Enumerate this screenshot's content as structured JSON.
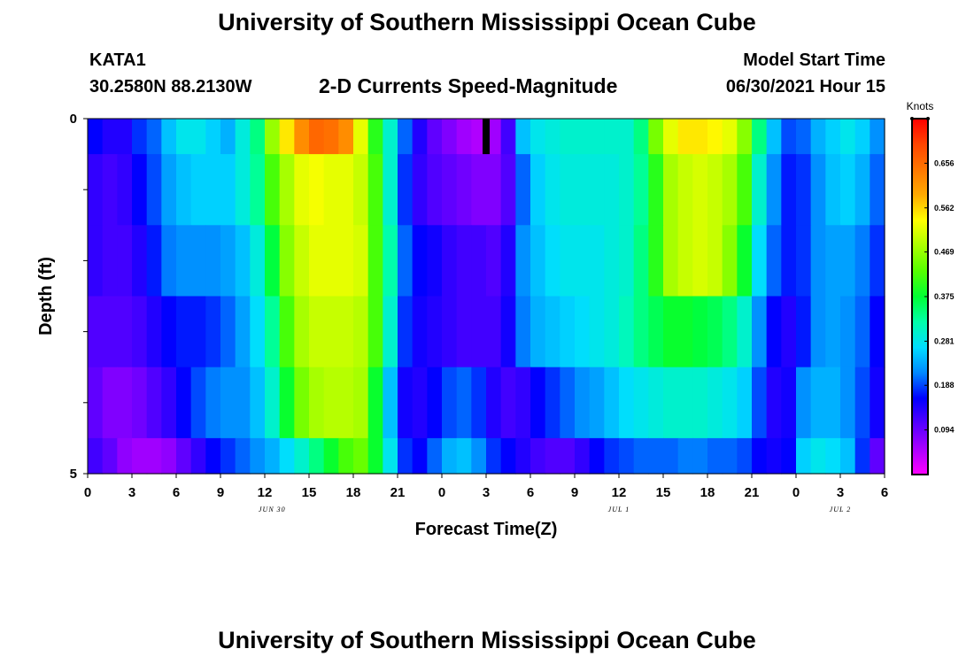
{
  "header": {
    "title": "University of Southern Mississippi Ocean Cube",
    "station": "KATA1",
    "coordinates": "30.2580N  88.2130W",
    "subtitle": "2-D Currents Speed-Magnitude",
    "model_start_label": "Model Start Time",
    "model_start_value": "06/30/2021 Hour 15"
  },
  "footer": {
    "title": "University of Southern Mississippi Ocean Cube"
  },
  "chart_data": {
    "type": "heatmap",
    "xlabel": "Forecast Time(Z)",
    "ylabel": "Depth (ft)",
    "x_hours": [
      0,
      3,
      6,
      9,
      12,
      15,
      18,
      21,
      24,
      27,
      30,
      33,
      36,
      39,
      42,
      45,
      48,
      51,
      54
    ],
    "x_tick_labels": [
      "0",
      "3",
      "6",
      "9",
      "12",
      "15",
      "18",
      "21",
      "0",
      "3",
      "6",
      "9",
      "12",
      "15",
      "18",
      "21",
      "0",
      "3",
      "6"
    ],
    "date_labels": [
      {
        "text": "JUN 30",
        "hour": 12.5
      },
      {
        "text": "JUL 1",
        "hour": 36
      },
      {
        "text": "JUL 2",
        "hour": 51
      }
    ],
    "xlim": [
      0,
      54
    ],
    "y_tick_labels": [
      {
        "depth": 0,
        "label": "0"
      },
      {
        "depth": 5,
        "label": "5"
      }
    ],
    "ylim": [
      0,
      5
    ],
    "depth_bins": [
      0,
      0.5,
      1.5,
      2.5,
      3.5,
      4.5,
      5
    ],
    "colorbar": {
      "title": "Knots",
      "ticks": [
        "0.656",
        "0.562",
        "0.469",
        "0.375",
        "0.281",
        "0.188",
        "0.094"
      ],
      "tick_values": [
        0.656,
        0.562,
        0.469,
        0.375,
        0.281,
        0.188,
        0.094
      ],
      "range": [
        0.0,
        0.75
      ],
      "colors": [
        "#ff00ff",
        "#aa00ff",
        "#5500ff",
        "#0000ff",
        "#0088ff",
        "#00ddff",
        "#00ffaa",
        "#00ff33",
        "#55ff00",
        "#aaff00",
        "#ffff00",
        "#ffaa00",
        "#ff7700",
        "#ff4400",
        "#ff0000"
      ]
    },
    "series": [
      {
        "values": [
          0.16,
          0.14,
          0.14,
          0.18,
          0.2,
          0.25,
          0.28,
          0.28,
          0.26,
          0.24,
          0.29,
          0.34,
          0.47,
          0.55,
          0.62,
          0.66,
          0.65,
          0.62,
          0.52,
          0.4,
          0.3,
          0.2,
          0.14,
          0.1,
          0.08,
          0.06,
          0.05,
          0.06,
          0.12,
          0.25,
          0.28,
          0.29,
          0.3,
          0.3,
          0.3,
          0.3,
          0.3,
          0.34,
          0.45,
          0.52,
          0.55,
          0.55,
          0.54,
          0.52,
          0.46,
          0.34,
          0.25,
          0.19,
          0.2,
          0.24,
          0.26,
          0.28,
          0.26,
          0.22
        ]
      },
      {
        "values": [
          0.13,
          0.12,
          0.13,
          0.16,
          0.19,
          0.23,
          0.25,
          0.26,
          0.26,
          0.26,
          0.29,
          0.33,
          0.42,
          0.48,
          0.52,
          0.53,
          0.52,
          0.52,
          0.5,
          0.42,
          0.3,
          0.18,
          0.13,
          0.11,
          0.1,
          0.09,
          0.08,
          0.08,
          0.11,
          0.2,
          0.26,
          0.28,
          0.29,
          0.29,
          0.29,
          0.29,
          0.3,
          0.33,
          0.4,
          0.48,
          0.5,
          0.51,
          0.5,
          0.48,
          0.42,
          0.3,
          0.22,
          0.17,
          0.18,
          0.22,
          0.25,
          0.26,
          0.24,
          0.2
        ]
      },
      {
        "values": [
          0.13,
          0.12,
          0.12,
          0.14,
          0.17,
          0.21,
          0.22,
          0.22,
          0.22,
          0.23,
          0.25,
          0.29,
          0.37,
          0.46,
          0.5,
          0.52,
          0.52,
          0.52,
          0.51,
          0.42,
          0.32,
          0.2,
          0.16,
          0.15,
          0.13,
          0.12,
          0.12,
          0.11,
          0.14,
          0.22,
          0.25,
          0.27,
          0.28,
          0.28,
          0.28,
          0.29,
          0.3,
          0.34,
          0.4,
          0.48,
          0.5,
          0.51,
          0.5,
          0.46,
          0.38,
          0.27,
          0.2,
          0.17,
          0.18,
          0.22,
          0.23,
          0.23,
          0.21,
          0.18
        ]
      },
      {
        "values": [
          0.11,
          0.11,
          0.11,
          0.12,
          0.14,
          0.16,
          0.17,
          0.17,
          0.18,
          0.2,
          0.23,
          0.27,
          0.33,
          0.42,
          0.48,
          0.5,
          0.5,
          0.5,
          0.49,
          0.42,
          0.3,
          0.18,
          0.15,
          0.14,
          0.13,
          0.12,
          0.12,
          0.12,
          0.15,
          0.21,
          0.24,
          0.25,
          0.26,
          0.27,
          0.28,
          0.29,
          0.31,
          0.34,
          0.36,
          0.38,
          0.38,
          0.37,
          0.36,
          0.34,
          0.3,
          0.22,
          0.16,
          0.14,
          0.17,
          0.22,
          0.23,
          0.22,
          0.2,
          0.16
        ]
      },
      {
        "values": [
          0.1,
          0.08,
          0.08,
          0.09,
          0.11,
          0.13,
          0.16,
          0.19,
          0.21,
          0.22,
          0.22,
          0.25,
          0.3,
          0.38,
          0.45,
          0.48,
          0.49,
          0.49,
          0.48,
          0.38,
          0.25,
          0.15,
          0.14,
          0.16,
          0.19,
          0.2,
          0.18,
          0.14,
          0.12,
          0.13,
          0.16,
          0.18,
          0.2,
          0.22,
          0.23,
          0.25,
          0.27,
          0.28,
          0.29,
          0.3,
          0.3,
          0.3,
          0.29,
          0.28,
          0.26,
          0.19,
          0.14,
          0.15,
          0.22,
          0.24,
          0.24,
          0.22,
          0.19,
          0.15
        ]
      },
      {
        "values": [
          0.12,
          0.1,
          0.07,
          0.06,
          0.06,
          0.07,
          0.1,
          0.13,
          0.16,
          0.18,
          0.2,
          0.22,
          0.24,
          0.27,
          0.3,
          0.34,
          0.38,
          0.42,
          0.44,
          0.38,
          0.28,
          0.18,
          0.16,
          0.2,
          0.24,
          0.25,
          0.22,
          0.18,
          0.16,
          0.14,
          0.12,
          0.11,
          0.11,
          0.13,
          0.16,
          0.18,
          0.19,
          0.2,
          0.2,
          0.2,
          0.21,
          0.21,
          0.2,
          0.2,
          0.19,
          0.16,
          0.15,
          0.16,
          0.26,
          0.28,
          0.27,
          0.25,
          0.18,
          0.1
        ]
      }
    ],
    "missing_cell": {
      "hour": 27,
      "depth_bin": 0
    }
  }
}
